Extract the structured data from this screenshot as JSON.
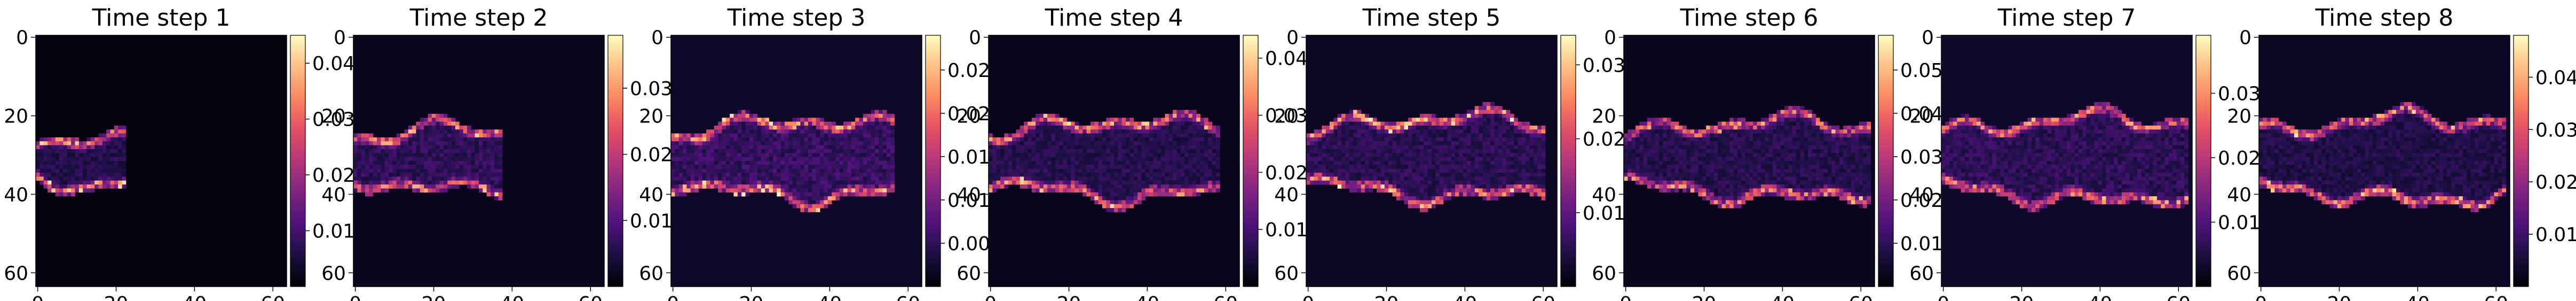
{
  "chart_data": {
    "type": "heatmap",
    "colormap": "magma",
    "grid": false,
    "xlim": [
      0,
      63
    ],
    "ylim": [
      63,
      0
    ],
    "x_ticks": [
      "0",
      "20",
      "40",
      "60"
    ],
    "y_ticks": [
      "0",
      "20",
      "40",
      "60"
    ],
    "colorbar_color_range": [
      "#000004",
      "#fcfdbf"
    ],
    "description": "",
    "panels": [
      {
        "title": "Time step 1",
        "vmin": 0.0,
        "vmax": 0.045,
        "cbar_ticks": [
          "0.01",
          "0.02",
          "0.03",
          "0.04"
        ],
        "cbar_values": [
          0.01,
          0.02,
          0.03,
          0.04
        ],
        "plume": {
          "x_end": 22,
          "y_top": 24,
          "y_bottom": 39,
          "edge_peak": 0.042,
          "interior": 0.006,
          "background": 0.001
        }
      },
      {
        "title": "Time step 2",
        "vmin": 0.0,
        "vmax": 0.038,
        "cbar_ticks": [
          "0.01",
          "0.02",
          "0.03"
        ],
        "cbar_values": [
          0.01,
          0.02,
          0.03
        ],
        "plume": {
          "x_end": 37,
          "y_top": 22,
          "y_bottom": 40,
          "edge_peak": 0.034,
          "interior": 0.006,
          "background": 0.002
        }
      },
      {
        "title": "Time step 3",
        "vmin": 0.0,
        "vmax": 0.029,
        "cbar_ticks": [
          "0.005",
          "0.010",
          "0.015",
          "0.020",
          "0.025"
        ],
        "cbar_values": [
          0.005,
          0.01,
          0.015,
          0.02,
          0.025
        ],
        "plume": {
          "x_end": 56,
          "y_top": 20,
          "y_bottom": 42,
          "edge_peak": 0.027,
          "interior": 0.005,
          "background": 0.002
        }
      },
      {
        "title": "Time step 4",
        "vmin": 0.0,
        "vmax": 0.044,
        "cbar_ticks": [
          "0.01",
          "0.02",
          "0.03",
          "0.04"
        ],
        "cbar_values": [
          0.01,
          0.02,
          0.03,
          0.04
        ],
        "plume": {
          "x_end": 58,
          "y_top": 20,
          "y_bottom": 42,
          "edge_peak": 0.04,
          "interior": 0.006,
          "background": 0.002
        }
      },
      {
        "title": "Time step 5",
        "vmin": 0.0,
        "vmax": 0.034,
        "cbar_ticks": [
          "0.01",
          "0.02",
          "0.03"
        ],
        "cbar_values": [
          0.01,
          0.02,
          0.03
        ],
        "plume": {
          "x_end": 60,
          "y_top": 19,
          "y_bottom": 42,
          "edge_peak": 0.032,
          "interior": 0.005,
          "background": 0.002
        }
      },
      {
        "title": "Time step 6",
        "vmin": 0.0,
        "vmax": 0.058,
        "cbar_ticks": [
          "0.01",
          "0.02",
          "0.03",
          "0.04",
          "0.05"
        ],
        "cbar_values": [
          0.01,
          0.02,
          0.03,
          0.04,
          0.05
        ],
        "plume": {
          "x_end": 62,
          "y_top": 20,
          "y_bottom": 42,
          "edge_peak": 0.05,
          "interior": 0.008,
          "background": 0.003
        }
      },
      {
        "title": "Time step 7",
        "vmin": 0.0,
        "vmax": 0.039,
        "cbar_ticks": [
          "0.01",
          "0.02",
          "0.03"
        ],
        "cbar_values": [
          0.01,
          0.02,
          0.03
        ],
        "plume": {
          "x_end": 62,
          "y_top": 19,
          "y_bottom": 43,
          "edge_peak": 0.035,
          "interior": 0.006,
          "background": 0.003
        }
      },
      {
        "title": "Time step 8",
        "vmin": 0.0,
        "vmax": 0.048,
        "cbar_ticks": [
          "0.01",
          "0.02",
          "0.03",
          "0.04"
        ],
        "cbar_values": [
          0.01,
          0.02,
          0.03,
          0.04
        ],
        "plume": {
          "x_end": 62,
          "y_top": 19,
          "y_bottom": 43,
          "edge_peak": 0.044,
          "interior": 0.006,
          "background": 0.003
        }
      }
    ]
  }
}
